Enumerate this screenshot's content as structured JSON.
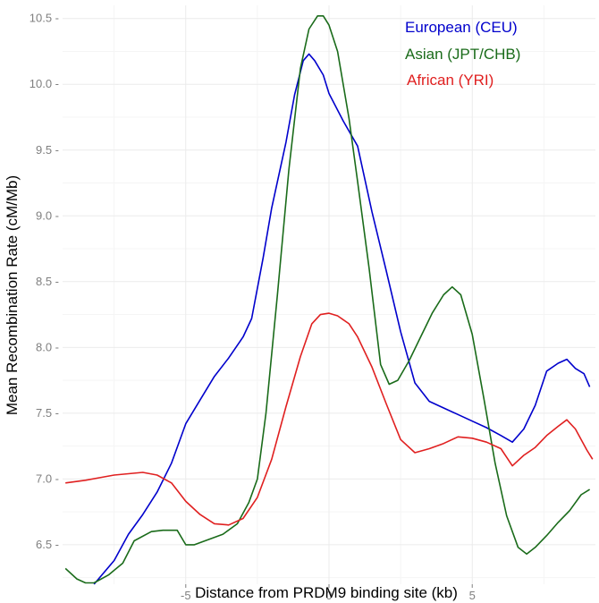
{
  "chart_data": {
    "type": "line",
    "title": "",
    "xlabel": "Distance from PRDM9 binding site (kb)",
    "ylabel": "Mean Recombination Rate (cM/Mb)",
    "xlim": [
      -9.3,
      9.3
    ],
    "ylim": [
      6.2,
      10.6
    ],
    "x_ticks": [
      -5,
      0,
      5
    ],
    "x_tick_labels": [
      "-5",
      "0",
      "5"
    ],
    "y_ticks": [
      6.5,
      7.0,
      7.5,
      8.0,
      8.5,
      9.0,
      9.5,
      10.0,
      10.5
    ],
    "y_tick_labels": [
      "6.5 -",
      "7.0 -",
      "7.5 -",
      "8.0 -",
      "8.5 -",
      "9.0 -",
      "9.5 -",
      "10.0 -",
      "10.5 -"
    ],
    "grid": true,
    "legend_position": "top-right",
    "series": [
      {
        "name": "European (CEU)",
        "color": "#0000cc",
        "points": [
          [
            -8.2,
            6.2
          ],
          [
            -7.5,
            6.38
          ],
          [
            -7.0,
            6.58
          ],
          [
            -6.5,
            6.73
          ],
          [
            -6.0,
            6.9
          ],
          [
            -5.5,
            7.12
          ],
          [
            -5.0,
            7.42
          ],
          [
            -4.5,
            7.6
          ],
          [
            -4.0,
            7.78
          ],
          [
            -3.5,
            7.92
          ],
          [
            -3.0,
            8.08
          ],
          [
            -2.7,
            8.22
          ],
          [
            -2.3,
            8.68
          ],
          [
            -2.0,
            9.06
          ],
          [
            -1.5,
            9.56
          ],
          [
            -1.2,
            9.92
          ],
          [
            -0.9,
            10.18
          ],
          [
            -0.7,
            10.23
          ],
          [
            -0.5,
            10.18
          ],
          [
            -0.2,
            10.07
          ],
          [
            0.0,
            9.93
          ],
          [
            0.5,
            9.72
          ],
          [
            1.0,
            9.53
          ],
          [
            1.5,
            9.03
          ],
          [
            2.0,
            8.58
          ],
          [
            2.5,
            8.12
          ],
          [
            3.0,
            7.73
          ],
          [
            3.5,
            7.59
          ],
          [
            4.0,
            7.54
          ],
          [
            4.5,
            7.49
          ],
          [
            5.0,
            7.44
          ],
          [
            5.5,
            7.39
          ],
          [
            6.0,
            7.33
          ],
          [
            6.4,
            7.28
          ],
          [
            6.8,
            7.38
          ],
          [
            7.2,
            7.56
          ],
          [
            7.6,
            7.82
          ],
          [
            8.0,
            7.88
          ],
          [
            8.3,
            7.91
          ],
          [
            8.6,
            7.84
          ],
          [
            8.9,
            7.8
          ],
          [
            9.1,
            7.7
          ]
        ]
      },
      {
        "name": "Asian (JPT/CHB)",
        "color": "#1a6b1a",
        "points": [
          [
            -9.2,
            6.32
          ],
          [
            -8.8,
            6.24
          ],
          [
            -8.5,
            6.21
          ],
          [
            -8.2,
            6.21
          ],
          [
            -7.7,
            6.27
          ],
          [
            -7.2,
            6.36
          ],
          [
            -6.8,
            6.53
          ],
          [
            -6.2,
            6.6
          ],
          [
            -5.8,
            6.61
          ],
          [
            -5.3,
            6.61
          ],
          [
            -5.0,
            6.5
          ],
          [
            -4.7,
            6.5
          ],
          [
            -4.2,
            6.54
          ],
          [
            -3.7,
            6.58
          ],
          [
            -3.2,
            6.66
          ],
          [
            -2.8,
            6.82
          ],
          [
            -2.5,
            7.0
          ],
          [
            -2.2,
            7.5
          ],
          [
            -1.8,
            8.4
          ],
          [
            -1.4,
            9.35
          ],
          [
            -1.0,
            10.12
          ],
          [
            -0.7,
            10.42
          ],
          [
            -0.4,
            10.52
          ],
          [
            -0.2,
            10.52
          ],
          [
            0.0,
            10.45
          ],
          [
            0.3,
            10.25
          ],
          [
            0.7,
            9.74
          ],
          [
            1.0,
            9.26
          ],
          [
            1.4,
            8.6
          ],
          [
            1.8,
            7.87
          ],
          [
            2.1,
            7.72
          ],
          [
            2.4,
            7.75
          ],
          [
            2.8,
            7.9
          ],
          [
            3.2,
            8.08
          ],
          [
            3.6,
            8.26
          ],
          [
            4.0,
            8.4
          ],
          [
            4.3,
            8.46
          ],
          [
            4.6,
            8.4
          ],
          [
            5.0,
            8.1
          ],
          [
            5.4,
            7.62
          ],
          [
            5.8,
            7.12
          ],
          [
            6.2,
            6.72
          ],
          [
            6.6,
            6.48
          ],
          [
            6.9,
            6.43
          ],
          [
            7.2,
            6.48
          ],
          [
            7.6,
            6.57
          ],
          [
            8.0,
            6.67
          ],
          [
            8.4,
            6.76
          ],
          [
            8.8,
            6.88
          ],
          [
            9.1,
            6.92
          ]
        ]
      },
      {
        "name": "African (YRI)",
        "color": "#e02020",
        "points": [
          [
            -9.2,
            6.97
          ],
          [
            -8.5,
            6.99
          ],
          [
            -8.0,
            7.01
          ],
          [
            -7.5,
            7.03
          ],
          [
            -7.0,
            7.04
          ],
          [
            -6.5,
            7.05
          ],
          [
            -6.0,
            7.03
          ],
          [
            -5.5,
            6.97
          ],
          [
            -5.0,
            6.83
          ],
          [
            -4.5,
            6.73
          ],
          [
            -4.0,
            6.66
          ],
          [
            -3.5,
            6.65
          ],
          [
            -3.0,
            6.7
          ],
          [
            -2.5,
            6.86
          ],
          [
            -2.0,
            7.15
          ],
          [
            -1.5,
            7.55
          ],
          [
            -1.0,
            7.93
          ],
          [
            -0.6,
            8.18
          ],
          [
            -0.3,
            8.25
          ],
          [
            0.0,
            8.26
          ],
          [
            0.3,
            8.24
          ],
          [
            0.7,
            8.18
          ],
          [
            1.0,
            8.08
          ],
          [
            1.5,
            7.85
          ],
          [
            2.0,
            7.57
          ],
          [
            2.5,
            7.3
          ],
          [
            3.0,
            7.2
          ],
          [
            3.5,
            7.23
          ],
          [
            4.0,
            7.27
          ],
          [
            4.5,
            7.32
          ],
          [
            5.0,
            7.31
          ],
          [
            5.5,
            7.28
          ],
          [
            6.0,
            7.23
          ],
          [
            6.4,
            7.1
          ],
          [
            6.8,
            7.18
          ],
          [
            7.2,
            7.24
          ],
          [
            7.6,
            7.33
          ],
          [
            8.0,
            7.4
          ],
          [
            8.3,
            7.45
          ],
          [
            8.6,
            7.38
          ],
          [
            9.0,
            7.22
          ],
          [
            9.2,
            7.15
          ]
        ]
      }
    ]
  }
}
